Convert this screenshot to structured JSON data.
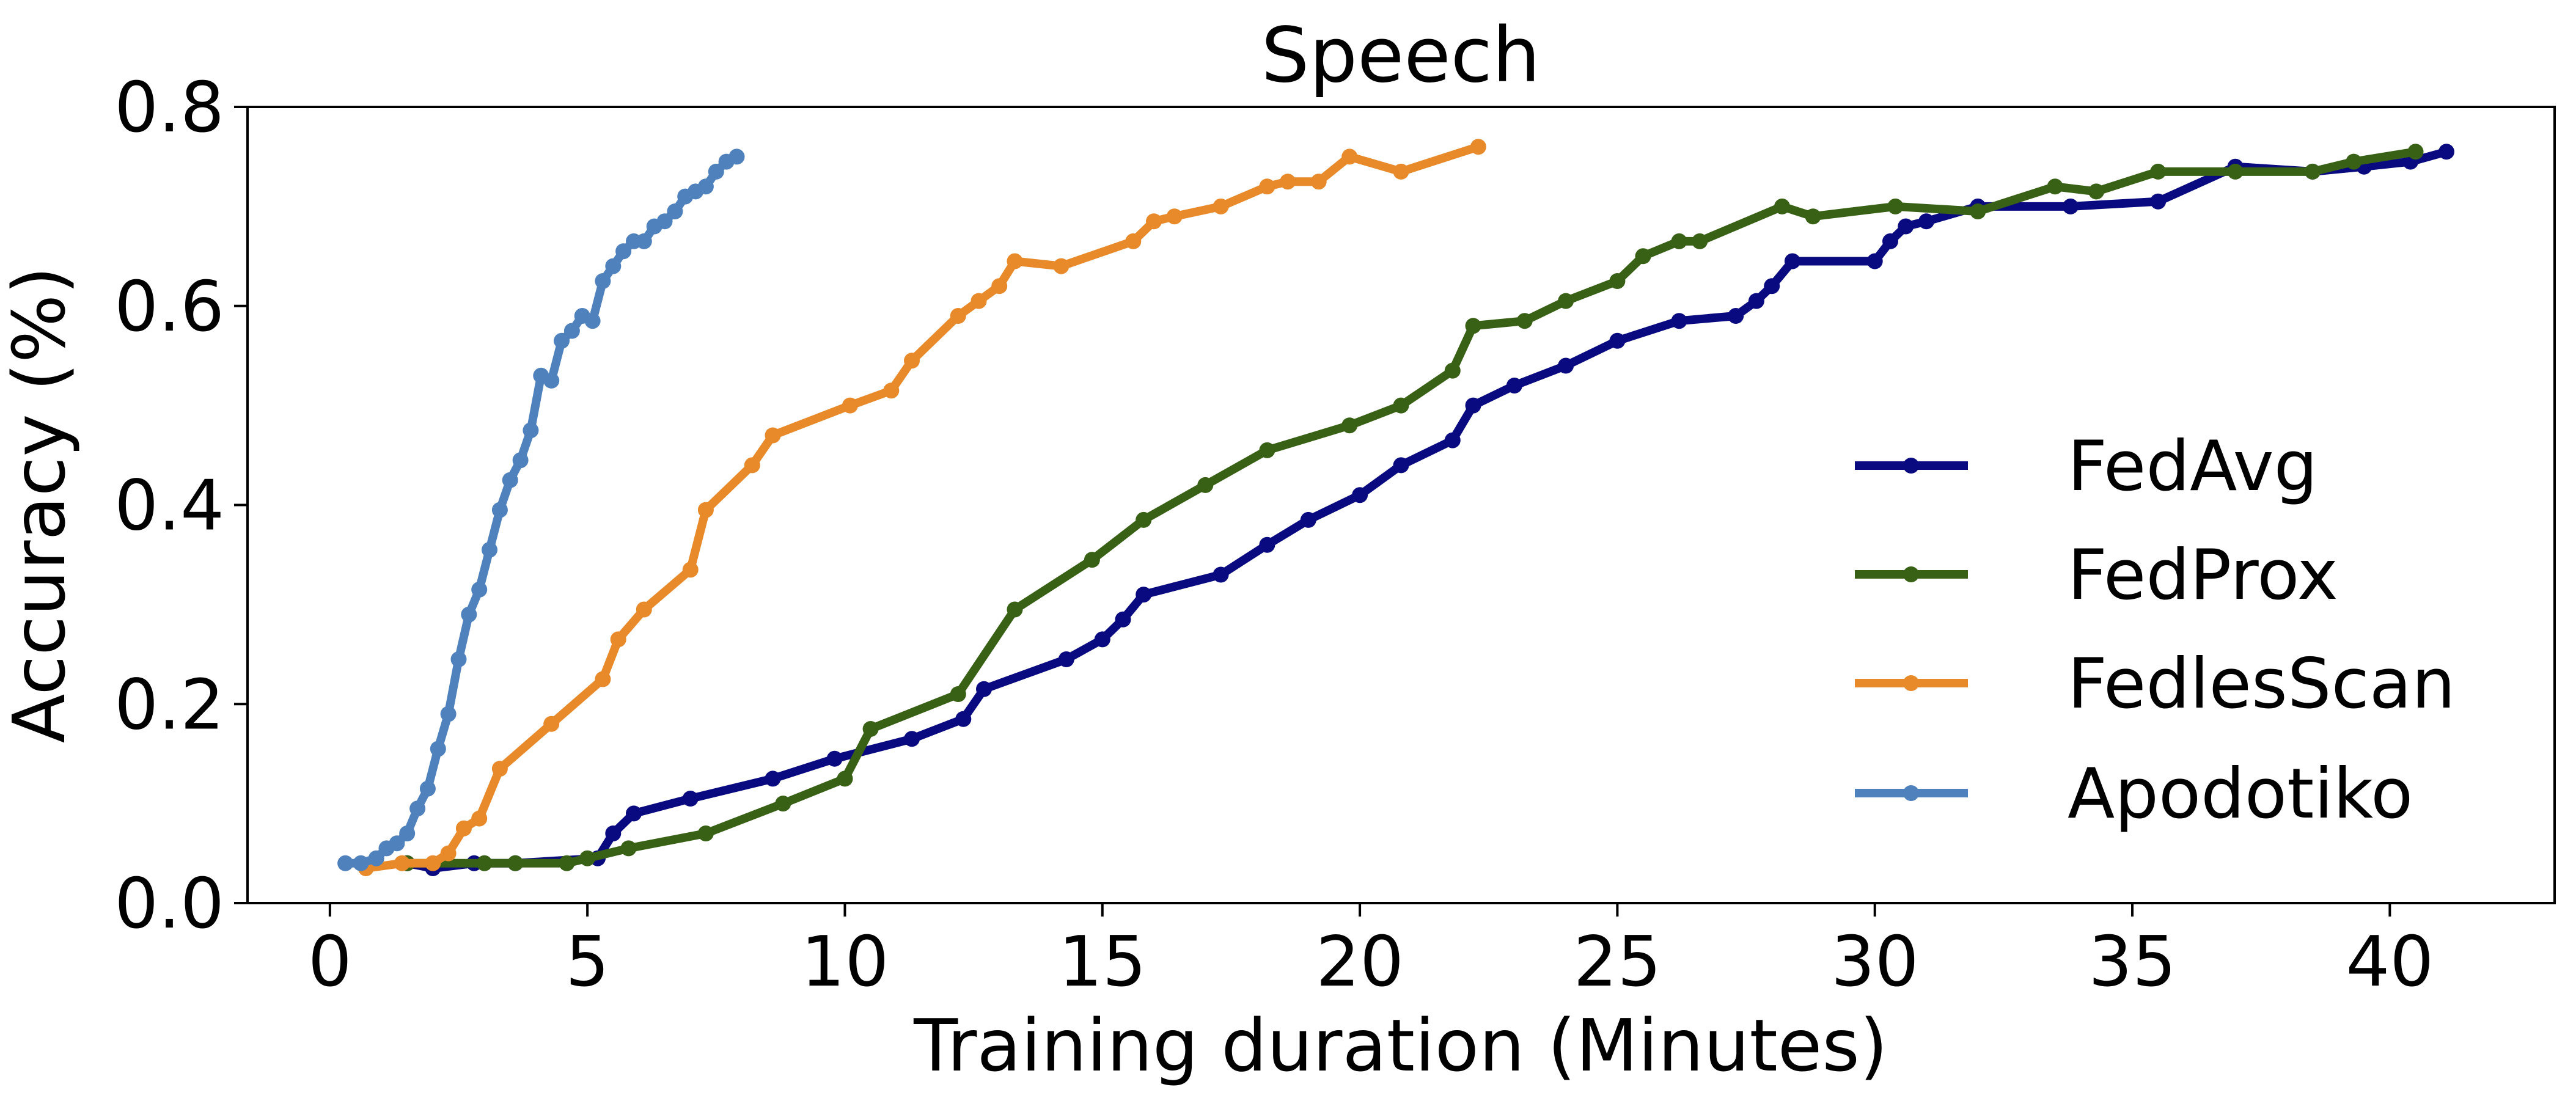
{
  "chart_data": {
    "type": "line",
    "title": "Speech",
    "xlabel": "Training duration (Minutes)",
    "ylabel": "Accuracy (%)",
    "xlim": [
      -1.6,
      43.2
    ],
    "ylim": [
      0.0,
      0.8
    ],
    "xticks": [
      0,
      5,
      10,
      15,
      20,
      25,
      30,
      35,
      40
    ],
    "xtick_labels": [
      "0",
      "5",
      "10",
      "15",
      "20",
      "25",
      "30",
      "35",
      "40"
    ],
    "yticks": [
      0.0,
      0.2,
      0.4,
      0.6,
      0.8
    ],
    "ytick_labels": [
      "0.0",
      "0.2",
      "0.4",
      "0.6",
      "0.8"
    ],
    "grid": false,
    "legend_position": "center-right",
    "series": [
      {
        "name": "FedAvg",
        "color": "#0a0a80",
        "x": [
          1.5,
          2.0,
          2.8,
          3.6,
          5.2,
          5.5,
          5.9,
          7.0,
          8.6,
          9.8,
          11.3,
          12.3,
          12.7,
          14.3,
          15.0,
          15.4,
          15.8,
          17.3,
          18.2,
          19.0,
          20.0,
          20.8,
          21.8,
          22.2,
          23.0,
          24.0,
          25.0,
          26.2,
          27.3,
          27.7,
          28.0,
          28.4,
          30.0,
          30.3,
          30.6,
          31.0,
          32.0,
          33.8,
          35.5,
          37.0,
          38.5,
          39.5,
          40.4,
          41.1
        ],
        "y": [
          0.04,
          0.035,
          0.04,
          0.04,
          0.045,
          0.07,
          0.09,
          0.105,
          0.125,
          0.145,
          0.165,
          0.185,
          0.215,
          0.245,
          0.265,
          0.285,
          0.31,
          0.33,
          0.36,
          0.385,
          0.41,
          0.44,
          0.465,
          0.5,
          0.52,
          0.54,
          0.565,
          0.585,
          0.59,
          0.605,
          0.62,
          0.645,
          0.645,
          0.665,
          0.68,
          0.685,
          0.7,
          0.7,
          0.705,
          0.74,
          0.735,
          0.74,
          0.745,
          0.755
        ]
      },
      {
        "name": "FedProx",
        "color": "#386116",
        "x": [
          1.5,
          3.0,
          3.6,
          4.6,
          5.0,
          5.8,
          7.3,
          8.8,
          10.0,
          10.5,
          12.2,
          13.3,
          14.8,
          15.8,
          17.0,
          18.2,
          19.8,
          20.8,
          21.8,
          22.2,
          23.2,
          24.0,
          25.0,
          25.5,
          26.2,
          26.6,
          28.2,
          28.8,
          30.4,
          32.0,
          33.5,
          34.3,
          35.5,
          37.0,
          38.5,
          39.3,
          40.5
        ],
        "y": [
          0.04,
          0.04,
          0.04,
          0.04,
          0.045,
          0.055,
          0.07,
          0.1,
          0.125,
          0.175,
          0.21,
          0.295,
          0.345,
          0.385,
          0.42,
          0.455,
          0.48,
          0.5,
          0.535,
          0.58,
          0.585,
          0.605,
          0.625,
          0.65,
          0.665,
          0.665,
          0.7,
          0.69,
          0.7,
          0.695,
          0.72,
          0.715,
          0.735,
          0.735,
          0.735,
          0.745,
          0.755
        ]
      },
      {
        "name": "FedlesScan",
        "color": "#e8892a",
        "x": [
          0.7,
          1.4,
          2.0,
          2.3,
          2.6,
          2.9,
          3.3,
          4.3,
          5.3,
          5.6,
          6.1,
          7.0,
          7.3,
          8.2,
          8.6,
          10.1,
          10.9,
          11.3,
          12.2,
          12.6,
          13.0,
          13.3,
          14.2,
          15.6,
          16.0,
          16.4,
          17.3,
          18.2,
          18.6,
          19.2,
          19.8,
          20.8,
          22.3
        ],
        "y": [
          0.035,
          0.04,
          0.04,
          0.05,
          0.075,
          0.085,
          0.135,
          0.18,
          0.225,
          0.265,
          0.295,
          0.335,
          0.395,
          0.44,
          0.47,
          0.5,
          0.515,
          0.545,
          0.59,
          0.605,
          0.62,
          0.645,
          0.64,
          0.665,
          0.685,
          0.69,
          0.7,
          0.72,
          0.725,
          0.725,
          0.75,
          0.735,
          0.76
        ]
      },
      {
        "name": "Apodotiko",
        "color": "#4f81bd",
        "x": [
          0.3,
          0.6,
          0.9,
          1.1,
          1.3,
          1.5,
          1.7,
          1.9,
          2.1,
          2.3,
          2.5,
          2.7,
          2.9,
          3.1,
          3.3,
          3.5,
          3.7,
          3.9,
          4.1,
          4.3,
          4.5,
          4.7,
          4.9,
          5.1,
          5.3,
          5.5,
          5.7,
          5.9,
          6.1,
          6.3,
          6.5,
          6.7,
          6.9,
          7.1,
          7.3,
          7.5,
          7.7,
          7.9
        ],
        "y": [
          0.04,
          0.04,
          0.045,
          0.055,
          0.06,
          0.07,
          0.095,
          0.115,
          0.155,
          0.19,
          0.245,
          0.29,
          0.315,
          0.355,
          0.395,
          0.425,
          0.445,
          0.475,
          0.53,
          0.525,
          0.565,
          0.575,
          0.59,
          0.585,
          0.625,
          0.64,
          0.655,
          0.665,
          0.665,
          0.68,
          0.685,
          0.695,
          0.71,
          0.715,
          0.72,
          0.735,
          0.745,
          0.75
        ]
      }
    ]
  }
}
